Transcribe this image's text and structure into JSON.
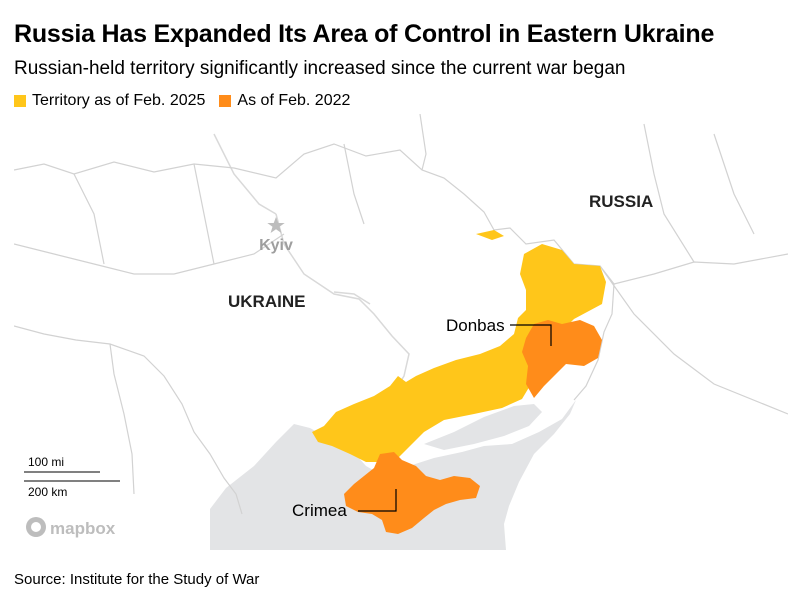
{
  "title": "Russia Has Expanded Its Area of Control in Eastern Ukraine",
  "subtitle": "Russian-held territory significantly increased since the current war began",
  "legend": [
    {
      "label": "Territory as of Feb. 2025",
      "color": "#FFC61A"
    },
    {
      "label": "As of Feb. 2022",
      "color": "#FF8C1A"
    }
  ],
  "map": {
    "labels": {
      "russia": "RUSSIA",
      "ukraine": "UKRAINE",
      "kyiv": "Kyiv",
      "donbas": "Donbas",
      "crimea": "Crimea"
    },
    "scale": {
      "miles": "100 mi",
      "km": "200 km"
    },
    "attribution": "mapbox",
    "colors": {
      "sea": "#E3E4E6",
      "land": "#FFFFFF",
      "border": "#D2D2D2",
      "place_label": "#9E9E9E"
    }
  },
  "source": "Source: Institute for the Study of War"
}
